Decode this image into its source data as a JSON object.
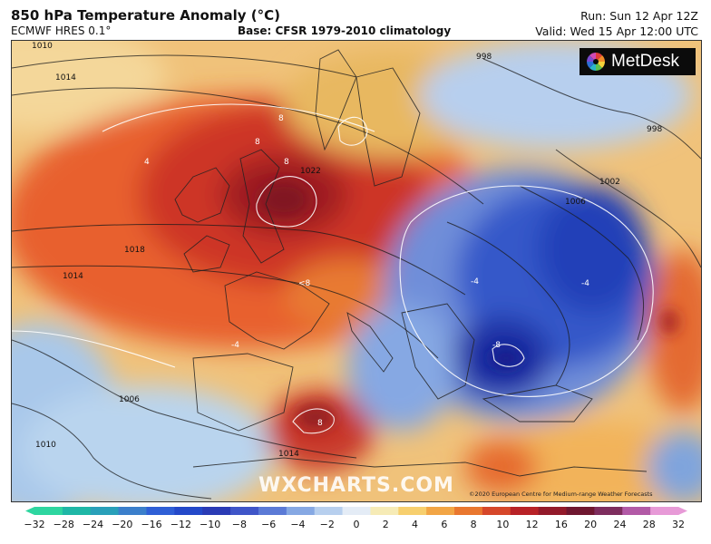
{
  "header": {
    "title": "850 hPa Temperature Anomaly (°C)",
    "model": "ECMWF HRES 0.1°",
    "base": "Base: CFSR 1979-2010 climatology",
    "run": "Run: Sun 12 Apr 12Z",
    "valid": "Valid: Wed 15 Apr 12:00 UTC"
  },
  "branding": {
    "logo_text": "MetDesk",
    "watermark": "WXCHARTS.COM",
    "copyright": "©2020 European Centre for Medium-range Weather Forecasts"
  },
  "isobar_labels": [
    "1010",
    "1014",
    "1018",
    "1014",
    "1006",
    "1010",
    "1014",
    "998",
    "998",
    "1002",
    "1006",
    "1022"
  ],
  "anomaly_labels": [
    "8",
    "8",
    "8",
    "<8",
    "-8",
    "8",
    "-4",
    "-4",
    "4",
    "-4"
  ],
  "colorbar": {
    "ticks": [
      "−32",
      "−28",
      "−24",
      "−20",
      "−16",
      "−12",
      "−10",
      "−8",
      "−6",
      "−4",
      "−2",
      "0",
      "2",
      "4",
      "6",
      "8",
      "10",
      "12",
      "16",
      "20",
      "24",
      "28",
      "32"
    ],
    "colors": [
      "#2ed6a0",
      "#1fb7a6",
      "#29a0b9",
      "#3b7fcb",
      "#2f5fd6",
      "#2449c9",
      "#2a3bb5",
      "#3f55c8",
      "#5b7ad6",
      "#86a8e3",
      "#b7cfee",
      "#e4ecf6",
      "#f6ebb6",
      "#f7cf6e",
      "#f2a545",
      "#e9772f",
      "#d6472a",
      "#b82227",
      "#931a2a",
      "#6f1730",
      "#7e2d5e",
      "#b25aa6",
      "#e79ad7"
    ]
  },
  "colors": {
    "sea_cold": "#9fc3e6",
    "warm": "#e8562e",
    "hot": "#9e1c22",
    "cold": "#3558c9",
    "very_cold": "#1f2fa3"
  }
}
